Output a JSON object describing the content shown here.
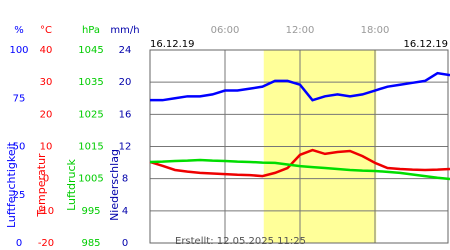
{
  "chart_data": {
    "type": "line",
    "date_start": "16.12.19",
    "date_end": "16.12.19",
    "footer": "Erstellt: 12.05.2025 11:25",
    "xlim": [
      0,
      24
    ],
    "xticks": [
      {
        "value": 6,
        "label": "06:00"
      },
      {
        "value": 12,
        "label": "12:00"
      },
      {
        "value": 18,
        "label": "18:00"
      }
    ],
    "highlight": [
      9.1,
      18.1
    ],
    "highlight_color": "#ffff99",
    "axes": [
      {
        "unit": "%",
        "title": "Luftfeuchtigkeit",
        "color": "#0000ff",
        "ylim": [
          0,
          100
        ],
        "yticks": [
          0,
          25,
          50,
          75,
          100
        ]
      },
      {
        "unit": "°C",
        "title": "Temperatur",
        "color": "#ff0000",
        "ylim": [
          -20,
          40
        ],
        "yticks": [
          -20,
          -10,
          0,
          10,
          20,
          30,
          40
        ]
      },
      {
        "unit": "hPa",
        "title": "Luftdruck",
        "color": "#00cc00",
        "ylim": [
          985,
          1045
        ],
        "yticks": [
          985,
          995,
          1005,
          1015,
          1025,
          1035,
          1045
        ]
      },
      {
        "unit": "mm/h",
        "title": "Niederschlag",
        "color": "#0000aa",
        "ylim": [
          0,
          24
        ],
        "yticks": [
          0,
          4,
          8,
          12,
          16,
          20,
          24
        ]
      }
    ],
    "grid_axis": 3,
    "x": [
      0,
      1,
      2,
      3,
      4,
      5,
      6,
      7,
      8,
      9,
      10,
      11,
      12,
      13,
      14,
      15,
      16,
      17,
      18,
      19,
      20,
      21,
      22,
      23,
      24
    ],
    "series": [
      {
        "axis": 0,
        "color": "#0000ff",
        "values": [
          74,
          74,
          75,
          76,
          76,
          77,
          79,
          79,
          80,
          81,
          84,
          84,
          82,
          74,
          76,
          77,
          76,
          77,
          79,
          81,
          82,
          83,
          84,
          88,
          87
        ]
      },
      {
        "axis": 1,
        "color": "#ee0000",
        "values": [
          5.2,
          4,
          2.7,
          2.2,
          1.8,
          1.6,
          1.4,
          1.2,
          1.1,
          0.8,
          1.8,
          3.3,
          7.4,
          8.9,
          7.7,
          8.3,
          8.6,
          7,
          4.9,
          3.3,
          3,
          2.8,
          2.7,
          2.8,
          3
        ]
      },
      {
        "axis": 2,
        "color": "#00dd00",
        "values": [
          1010.2,
          1010.3,
          1010.5,
          1010.6,
          1010.8,
          1010.6,
          1010.5,
          1010.3,
          1010.2,
          1010,
          1009.9,
          1009.4,
          1008.9,
          1008.6,
          1008.3,
          1008,
          1007.7,
          1007.5,
          1007.4,
          1007.1,
          1006.8,
          1006.3,
          1005.8,
          1005.3,
          1004.9
        ]
      }
    ]
  }
}
